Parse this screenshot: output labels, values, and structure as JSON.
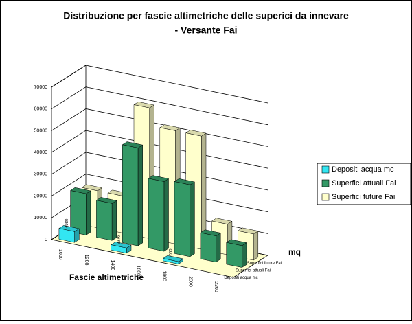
{
  "chart_data": {
    "type": "bar3d",
    "title": "Distribuzione per fascie altimetriche delle superici da innevare",
    "subtitle": "- Versante Fai",
    "xlabel": "Fascie altimetriche",
    "ylabel": "mq",
    "categories": [
      "1000",
      "1200",
      "1400",
      "1600",
      "1800",
      "2000",
      "2300"
    ],
    "series": [
      {
        "name": "Depositi acqua mc",
        "color": "#33e6f2",
        "values": [
          4980,
          null,
          2376,
          null,
          1060,
          null,
          null
        ]
      },
      {
        "name": "Superfici attuali Fai",
        "color": "#339966",
        "values": [
          19000,
          17000,
          45000,
          32000,
          33000,
          12000,
          10000
        ]
      },
      {
        "name": "Superfici future Fai",
        "color": "#ffffcc",
        "values": [
          17000,
          17000,
          60000,
          52000,
          52000,
          14000,
          12000
        ]
      }
    ],
    "ylim": [
      0,
      70000
    ],
    "yticks": [
      0,
      10000,
      20000,
      30000,
      40000,
      50000,
      60000,
      70000
    ],
    "grid": true
  }
}
